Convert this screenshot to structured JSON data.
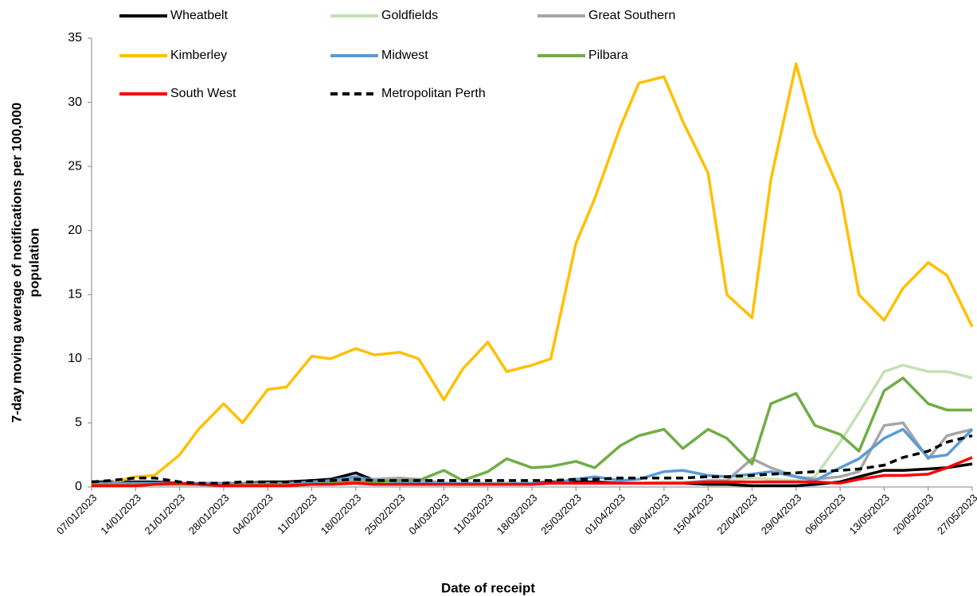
{
  "chart_data": {
    "type": "line",
    "xlabel": "Date of receipt",
    "ylabel": [
      "7-day moving average of notifications  per 100,000",
      "population"
    ],
    "x": [
      "07/01/2023",
      "10/01/2023",
      "14/01/2023",
      "17/01/2023",
      "21/01/2023",
      "24/01/2023",
      "28/01/2023",
      "31/01/2023",
      "04/02/2023",
      "07/02/2023",
      "11/02/2023",
      "14/02/2023",
      "18/02/2023",
      "21/02/2023",
      "25/02/2023",
      "28/02/2023",
      "04/03/2023",
      "07/03/2023",
      "11/03/2023",
      "14/03/2023",
      "18/03/2023",
      "21/03/2023",
      "25/03/2023",
      "28/03/2023",
      "01/04/2023",
      "04/04/2023",
      "08/04/2023",
      "11/04/2023",
      "15/04/2023",
      "18/04/2023",
      "22/04/2023",
      "25/04/2023",
      "29/04/2023",
      "02/05/2023",
      "06/05/2023",
      "09/05/2023",
      "13/05/2023",
      "16/05/2023",
      "20/05/2023",
      "23/05/2023",
      "27/05/2023"
    ],
    "xlim": [
      "07/01/2023",
      "27/05/2023"
    ],
    "xticks": [
      "07/01/2023",
      "14/01/2023",
      "21/01/2023",
      "28/01/2023",
      "04/02/2023",
      "11/02/2023",
      "18/02/2023",
      "25/02/2023",
      "04/03/2023",
      "11/03/2023",
      "18/03/2023",
      "25/03/2023",
      "01/04/2023",
      "08/04/2023",
      "15/04/2023",
      "22/04/2023",
      "29/04/2023",
      "06/05/2023",
      "13/05/2023",
      "20/05/2023",
      "27/05/2023"
    ],
    "ylim": [
      0,
      35
    ],
    "yticks": [
      0,
      5,
      10,
      15,
      20,
      25,
      30,
      35
    ],
    "grid": false,
    "legend": "top",
    "series": [
      {
        "name": "Wheatbelt",
        "color": "#000000",
        "values": [
          0.4,
          0.4,
          0.4,
          0.4,
          0.3,
          0.3,
          0.3,
          0.3,
          0.4,
          0.4,
          0.5,
          0.6,
          1.1,
          0.5,
          0.4,
          0.4,
          0.3,
          0.3,
          0.3,
          0.3,
          0.3,
          0.4,
          0.4,
          0.4,
          0.3,
          0.3,
          0.3,
          0.3,
          0.2,
          0.2,
          0.1,
          0.1,
          0.1,
          0.2,
          0.4,
          0.8,
          1.3,
          1.3,
          1.4,
          1.5,
          1.8
        ]
      },
      {
        "name": "Goldfields",
        "color": "#c5e0b4",
        "values": [
          0.3,
          0.3,
          0.3,
          0.3,
          0.3,
          0.2,
          0.2,
          0.2,
          0.2,
          0.2,
          0.3,
          0.3,
          0.3,
          0.3,
          0.4,
          0.4,
          0.3,
          0.3,
          0.3,
          0.3,
          0.3,
          0.3,
          0.3,
          0.3,
          0.3,
          0.3,
          0.4,
          0.4,
          0.4,
          0.5,
          0.7,
          0.6,
          0.5,
          0.8,
          3.5,
          5.8,
          9,
          9.5,
          9,
          9,
          8.5
        ]
      },
      {
        "name": "Great Southern",
        "color": "#a6a6a6",
        "values": [
          0.3,
          0.3,
          0.3,
          0.3,
          0.3,
          0.3,
          0.3,
          0.3,
          0.3,
          0.3,
          0.3,
          0.4,
          0.6,
          0.6,
          0.7,
          0.6,
          0.3,
          0.3,
          0.3,
          0.3,
          0.3,
          0.3,
          0.3,
          0.3,
          0.3,
          0.3,
          0.3,
          0.3,
          0.5,
          0.5,
          2.2,
          1.5,
          0.8,
          0.6,
          0.8,
          1.2,
          4.8,
          5,
          2.2,
          4,
          4.5
        ]
      },
      {
        "name": "Kimberley",
        "color": "#ffc000",
        "values": [
          0.2,
          0.3,
          0.8,
          0.9,
          2.5,
          4.5,
          6.5,
          5,
          7.6,
          7.8,
          10.2,
          10,
          10.8,
          10.3,
          10.5,
          10,
          6.8,
          9.2,
          11.3,
          9,
          9.5,
          10,
          19,
          22.5,
          28,
          31.5,
          32,
          28.5,
          24.5,
          15,
          13.2,
          24,
          33,
          27.5,
          23,
          15,
          13,
          15.5,
          17.5,
          16.5,
          12.5
        ]
      },
      {
        "name": "Midwest",
        "color": "#5b9bd5",
        "values": [
          0.3,
          0.3,
          0.3,
          0.3,
          0.3,
          0.3,
          0.3,
          0.3,
          0.3,
          0.3,
          0.4,
          0.5,
          0.8,
          0.5,
          0.4,
          0.3,
          0.3,
          0.3,
          0.2,
          0.2,
          0.3,
          0.3,
          0.6,
          0.8,
          0.5,
          0.6,
          1.2,
          1.3,
          0.9,
          0.8,
          1,
          1.2,
          0.8,
          0.5,
          1.5,
          2.2,
          3.8,
          4.5,
          2.3,
          2.5,
          4.5
        ]
      },
      {
        "name": "Pilbara",
        "color": "#70ad47",
        "values": [
          0.2,
          0.2,
          0.2,
          0.2,
          0.2,
          0.2,
          0.2,
          0.2,
          0.2,
          0.2,
          0.2,
          0.3,
          0.4,
          0.4,
          0.5,
          0.5,
          1.3,
          0.5,
          1.2,
          2.2,
          1.5,
          1.6,
          2,
          1.5,
          3.2,
          4,
          4.5,
          3,
          4.5,
          3.8,
          1.8,
          6.5,
          7.3,
          4.8,
          4.1,
          2.8,
          7.5,
          8.5,
          6.5,
          6,
          6
        ]
      },
      {
        "name": "South West",
        "color": "#ff0000",
        "values": [
          0.1,
          0.1,
          0.1,
          0.2,
          0.3,
          0.2,
          0.1,
          0.1,
          0.1,
          0.1,
          0.2,
          0.2,
          0.3,
          0.2,
          0.2,
          0.2,
          0.2,
          0.2,
          0.2,
          0.2,
          0.2,
          0.3,
          0.3,
          0.3,
          0.3,
          0.3,
          0.3,
          0.3,
          0.4,
          0.4,
          0.4,
          0.4,
          0.4,
          0.4,
          0.3,
          0.6,
          0.9,
          0.9,
          1,
          1.5,
          2.3
        ]
      },
      {
        "name": "Metropolitan Perth",
        "color": "#000000",
        "dashed": true,
        "values": [
          0.4,
          0.5,
          0.7,
          0.7,
          0.4,
          0.3,
          0.3,
          0.4,
          0.4,
          0.4,
          0.5,
          0.5,
          0.6,
          0.5,
          0.5,
          0.5,
          0.5,
          0.5,
          0.5,
          0.5,
          0.5,
          0.5,
          0.6,
          0.6,
          0.7,
          0.7,
          0.7,
          0.7,
          0.8,
          0.8,
          0.9,
          1,
          1.1,
          1.2,
          1.3,
          1.4,
          1.7,
          2.3,
          2.8,
          3.5,
          4
        ]
      }
    ]
  }
}
